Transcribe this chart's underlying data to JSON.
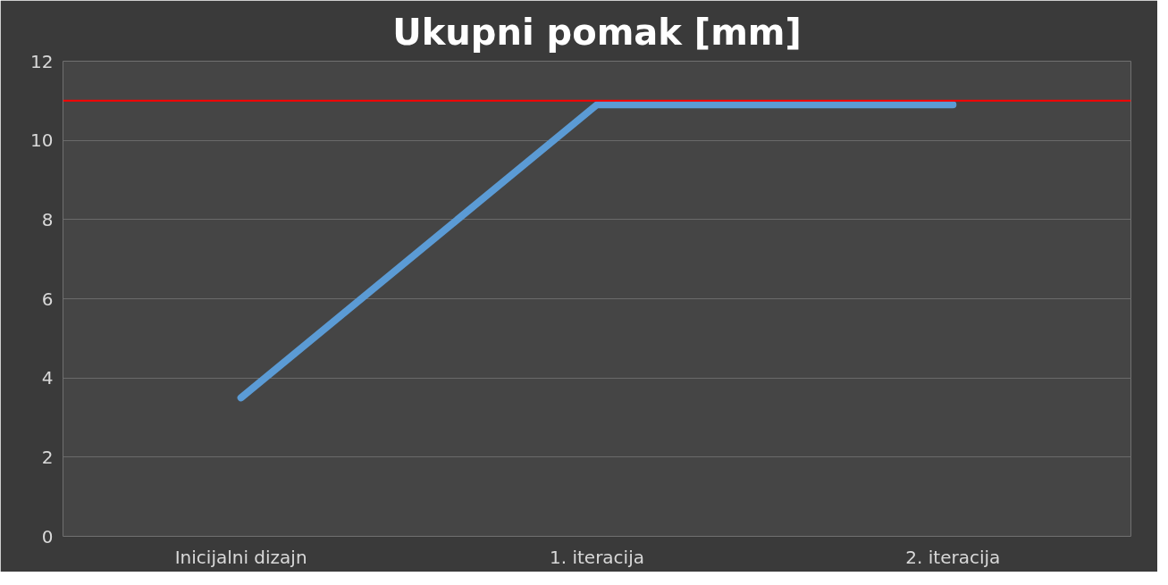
{
  "chart_data": {
    "type": "line",
    "title": "Ukupni pomak [mm]",
    "categories": [
      "Inicijalni dizajn",
      "1. iteracija",
      "2. iteracija"
    ],
    "series": [
      {
        "color": "#5b9bd5",
        "values": [
          3.5,
          10.9,
          10.9
        ]
      }
    ],
    "ylim": [
      0,
      12
    ],
    "yticks": [
      0,
      2,
      4,
      6,
      8,
      10,
      12
    ],
    "grid": "y",
    "marker": "none",
    "line_style": "solid",
    "ref_lines": [
      {
        "axis": "y",
        "value": 11,
        "color": "#ff0000"
      }
    ]
  }
}
